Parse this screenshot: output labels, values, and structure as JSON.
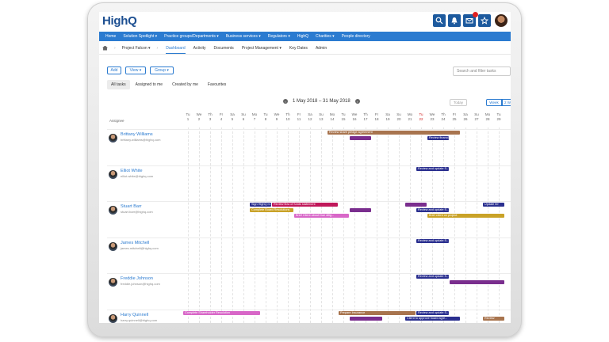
{
  "app": {
    "logo": "HighQ"
  },
  "nav": [
    "Home",
    "Solution Spotlight ▾",
    "Practice groups/Departments ▾",
    "Business services ▾",
    "Regulators ▾",
    "HighQ",
    "Charities ▾",
    "People directory"
  ],
  "breadcrumb": {
    "project": "Project Falcon ▾"
  },
  "tabs": [
    "Dashboard",
    "Activity",
    "Documents",
    "Project Management ▾",
    "Key Dates",
    "Admin"
  ],
  "toolbar": {
    "add": "Add",
    "view": "View ▾",
    "group": "Group ▾",
    "search_placeholder": "Search and filter tasks"
  },
  "filters": [
    "All tasks",
    "Assigned to me",
    "Created by me",
    "Favourites"
  ],
  "range": {
    "label": "1 May 2018 – 31 May 2018",
    "today": "Today",
    "week": "Week",
    "two_week": "2 W"
  },
  "grid": {
    "assignee_header": "Assignee",
    "days": [
      {
        "wd": "Tu",
        "d": "1"
      },
      {
        "wd": "We",
        "d": "2"
      },
      {
        "wd": "Th",
        "d": "3"
      },
      {
        "wd": "Fr",
        "d": "4"
      },
      {
        "wd": "Sa",
        "d": "5"
      },
      {
        "wd": "Su",
        "d": "6"
      },
      {
        "wd": "Mo",
        "d": "7"
      },
      {
        "wd": "Tu",
        "d": "8"
      },
      {
        "wd": "We",
        "d": "9"
      },
      {
        "wd": "Th",
        "d": "10"
      },
      {
        "wd": "Fr",
        "d": "11"
      },
      {
        "wd": "Sa",
        "d": "12"
      },
      {
        "wd": "Su",
        "d": "13"
      },
      {
        "wd": "Mo",
        "d": "14"
      },
      {
        "wd": "Tu",
        "d": "15"
      },
      {
        "wd": "We",
        "d": "16"
      },
      {
        "wd": "Th",
        "d": "17"
      },
      {
        "wd": "Fr",
        "d": "18"
      },
      {
        "wd": "Sa",
        "d": "19"
      },
      {
        "wd": "Su",
        "d": "20"
      },
      {
        "wd": "Mo",
        "d": "21"
      },
      {
        "wd": "Tu",
        "d": "22"
      },
      {
        "wd": "We",
        "d": "23"
      },
      {
        "wd": "Th",
        "d": "24"
      },
      {
        "wd": "Fr",
        "d": "25"
      },
      {
        "wd": "Sa",
        "d": "26"
      },
      {
        "wd": "Su",
        "d": "27"
      },
      {
        "wd": "Mo",
        "d": "28"
      },
      {
        "wd": "Tu",
        "d": "29"
      }
    ],
    "today_index": 21,
    "people": [
      {
        "name": "Brittany Williams",
        "email": "brittany.williams@highq.com"
      },
      {
        "name": "Elliot White",
        "email": "elliot.white@highq.com"
      },
      {
        "name": "Stuart Barr",
        "email": "stuart.barr@highq.com"
      },
      {
        "name": "James Mitchell",
        "email": "james.mitchell@highq.com"
      },
      {
        "name": "Freddie Johnson",
        "email": "freddie.johnson@highq.com"
      },
      {
        "name": "Harry Quinnell",
        "email": "harry.quinnell@highq.com"
      }
    ],
    "tasks": [
      {
        "row": 0,
        "lane": 0,
        "start": 13,
        "end": 25,
        "label": "Review share pledge agreement",
        "color": "#a8744e"
      },
      {
        "row": 0,
        "lane": 1,
        "start": 15,
        "end": 17,
        "label": "",
        "color": "#7a2e8e"
      },
      {
        "row": 0,
        "lane": 1,
        "start": 22,
        "end": 24,
        "label": "Review financials",
        "color": "#2a2f8f"
      },
      {
        "row": 1,
        "lane": 0,
        "start": 21,
        "end": 24,
        "label": "Review and update S...",
        "color": "#2a2f8f"
      },
      {
        "row": 2,
        "lane": 0,
        "start": 6,
        "end": 8,
        "label": "Sign HighQ m...",
        "color": "#2a2f8f"
      },
      {
        "row": 2,
        "lane": 0,
        "start": 8,
        "end": 14,
        "label": "Review flow of funds statement",
        "color": "#c0185a"
      },
      {
        "row": 2,
        "lane": 0,
        "start": 20,
        "end": 22,
        "label": "",
        "color": "#7a2e8e"
      },
      {
        "row": 2,
        "lane": 0,
        "start": 27,
        "end": 29,
        "label": "Update ter",
        "color": "#2a2f8f"
      },
      {
        "row": 2,
        "lane": 1,
        "start": 6,
        "end": 10,
        "label": "Complete Board Resolutions",
        "color": "#c9a227"
      },
      {
        "row": 2,
        "lane": 1,
        "start": 15,
        "end": 17,
        "label": "",
        "color": "#7a2e8e"
      },
      {
        "row": 2,
        "lane": 1,
        "start": 21,
        "end": 24,
        "label": "Review and update S...",
        "color": "#2a2f8f"
      },
      {
        "row": 2,
        "lane": 2,
        "start": 10,
        "end": 15,
        "label": "Brief Client about Due dilig...",
        "color": "#d867c8"
      },
      {
        "row": 2,
        "lane": 2,
        "start": 22,
        "end": 29,
        "label": "Brief client on project",
        "color": "#c9a227"
      },
      {
        "row": 3,
        "lane": 0,
        "start": 21,
        "end": 24,
        "label": "Review and update S...",
        "color": "#2a2f8f"
      },
      {
        "row": 4,
        "lane": 0,
        "start": 21,
        "end": 24,
        "label": "Review and update S...",
        "color": "#2a2f8f"
      },
      {
        "row": 4,
        "lane": 1,
        "start": 24,
        "end": 29,
        "label": "",
        "color": "#7a2e8e"
      },
      {
        "row": 5,
        "lane": 0,
        "start": 0,
        "end": 7,
        "label": "Complete Shareholder Resolution",
        "color": "#d867c8"
      },
      {
        "row": 5,
        "lane": 0,
        "start": 14,
        "end": 21,
        "label": "Prepare Insurance",
        "color": "#a8744e"
      },
      {
        "row": 5,
        "lane": 0,
        "start": 21,
        "end": 24,
        "label": "Review and update S...",
        "color": "#2a2f8f"
      },
      {
        "row": 5,
        "lane": 1,
        "start": 15,
        "end": 18,
        "label": "",
        "color": "#7a2e8e"
      },
      {
        "row": 5,
        "lane": 1,
        "start": 20,
        "end": 25,
        "label": "Client to approve board agre...",
        "color": "#2a2f8f"
      },
      {
        "row": 5,
        "lane": 1,
        "start": 27,
        "end": 29,
        "label": "Review",
        "color": "#a8744e"
      }
    ]
  }
}
